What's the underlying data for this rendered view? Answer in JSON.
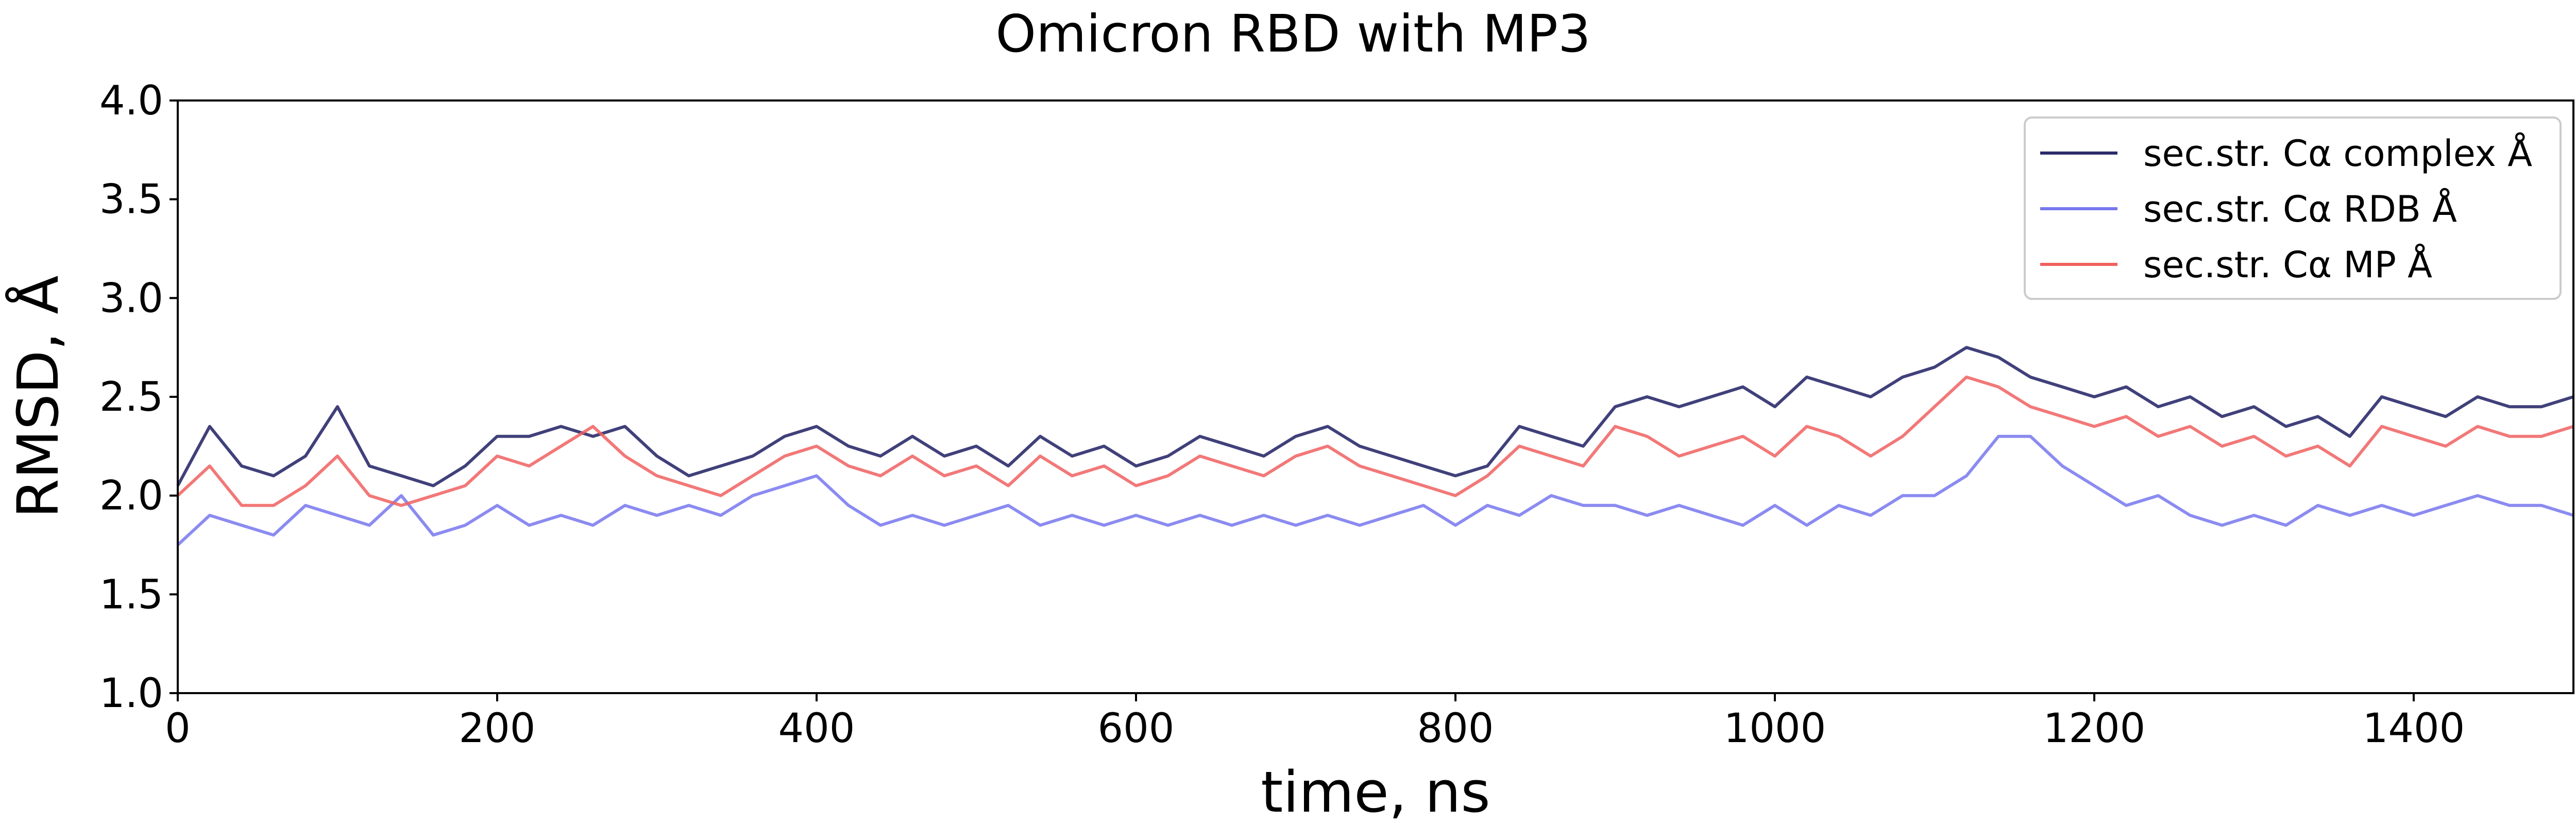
{
  "chart_data": {
    "type": "line",
    "title": "Omicron RBD with MP3",
    "xlabel": "time, ns",
    "ylabel": "RMSD, Å",
    "xlim": [
      0,
      1500
    ],
    "ylim": [
      1.0,
      4.0
    ],
    "xticks": [
      0,
      200,
      400,
      600,
      800,
      1000,
      1200,
      1400
    ],
    "yticks": [
      1.0,
      1.5,
      2.0,
      2.5,
      3.0,
      3.5,
      4.0
    ],
    "xtick_labels": [
      "0",
      "200",
      "400",
      "600",
      "800",
      "1000",
      "1200",
      "1400"
    ],
    "ytick_labels": [
      "1.0",
      "1.5",
      "2.0",
      "2.5",
      "3.0",
      "3.5",
      "4.0"
    ],
    "grid": false,
    "legend_position": "top-right",
    "x": [
      0,
      20,
      40,
      60,
      80,
      100,
      120,
      140,
      160,
      180,
      200,
      220,
      240,
      260,
      280,
      300,
      320,
      340,
      360,
      380,
      400,
      420,
      440,
      460,
      480,
      500,
      520,
      540,
      560,
      580,
      600,
      620,
      640,
      660,
      680,
      700,
      720,
      740,
      760,
      780,
      800,
      820,
      840,
      860,
      880,
      900,
      920,
      940,
      960,
      980,
      1000,
      1020,
      1040,
      1060,
      1080,
      1100,
      1120,
      1140,
      1160,
      1180,
      1200,
      1220,
      1240,
      1260,
      1280,
      1300,
      1320,
      1340,
      1360,
      1380,
      1400,
      1420,
      1440,
      1460,
      1480,
      1500
    ],
    "series": [
      {
        "name": "sec.str. Cα complex Å",
        "color": "#2b2b6b",
        "values": [
          2.05,
          2.35,
          2.15,
          2.1,
          2.2,
          2.45,
          2.15,
          2.1,
          2.05,
          2.15,
          2.3,
          2.3,
          2.35,
          2.3,
          2.35,
          2.2,
          2.1,
          2.15,
          2.2,
          2.3,
          2.35,
          2.25,
          2.2,
          2.3,
          2.2,
          2.25,
          2.15,
          2.3,
          2.2,
          2.25,
          2.15,
          2.2,
          2.3,
          2.25,
          2.2,
          2.3,
          2.35,
          2.25,
          2.2,
          2.15,
          2.1,
          2.15,
          2.35,
          2.3,
          2.25,
          2.45,
          2.5,
          2.45,
          2.5,
          2.55,
          2.45,
          2.6,
          2.55,
          2.5,
          2.6,
          2.65,
          2.75,
          2.7,
          2.6,
          2.55,
          2.5,
          2.55,
          2.45,
          2.5,
          2.4,
          2.45,
          2.35,
          2.4,
          2.3,
          2.5,
          2.45,
          2.4,
          2.5,
          2.45,
          2.45,
          2.5
        ]
      },
      {
        "name": "sec.str. Cα RDB Å",
        "color": "#7777ee",
        "values": [
          1.75,
          1.9,
          1.85,
          1.8,
          1.95,
          1.9,
          1.85,
          2.0,
          1.8,
          1.85,
          1.95,
          1.85,
          1.9,
          1.85,
          1.95,
          1.9,
          1.95,
          1.9,
          2.0,
          2.05,
          2.1,
          1.95,
          1.85,
          1.9,
          1.85,
          1.9,
          1.95,
          1.85,
          1.9,
          1.85,
          1.9,
          1.85,
          1.9,
          1.85,
          1.9,
          1.85,
          1.9,
          1.85,
          1.9,
          1.95,
          1.85,
          1.95,
          1.9,
          2.0,
          1.95,
          1.95,
          1.9,
          1.95,
          1.9,
          1.85,
          1.95,
          1.85,
          1.95,
          1.9,
          2.0,
          2.0,
          2.1,
          2.3,
          2.3,
          2.15,
          2.05,
          1.95,
          2.0,
          1.9,
          1.85,
          1.9,
          1.85,
          1.95,
          1.9,
          1.95,
          1.9,
          1.95,
          2.0,
          1.95,
          1.95,
          1.9
        ]
      },
      {
        "name": "sec.str. Cα MP Å",
        "color": "#f06060",
        "values": [
          2.0,
          2.15,
          1.95,
          1.95,
          2.05,
          2.2,
          2.0,
          1.95,
          2.0,
          2.05,
          2.2,
          2.15,
          2.25,
          2.35,
          2.2,
          2.1,
          2.05,
          2.0,
          2.1,
          2.2,
          2.25,
          2.15,
          2.1,
          2.2,
          2.1,
          2.15,
          2.05,
          2.2,
          2.1,
          2.15,
          2.05,
          2.1,
          2.2,
          2.15,
          2.1,
          2.2,
          2.25,
          2.15,
          2.1,
          2.05,
          2.0,
          2.1,
          2.25,
          2.2,
          2.15,
          2.35,
          2.3,
          2.2,
          2.25,
          2.3,
          2.2,
          2.35,
          2.3,
          2.2,
          2.3,
          2.45,
          2.6,
          2.55,
          2.45,
          2.4,
          2.35,
          2.4,
          2.3,
          2.35,
          2.25,
          2.3,
          2.2,
          2.25,
          2.15,
          2.35,
          2.3,
          2.25,
          2.35,
          2.3,
          2.3,
          2.35
        ]
      }
    ]
  }
}
